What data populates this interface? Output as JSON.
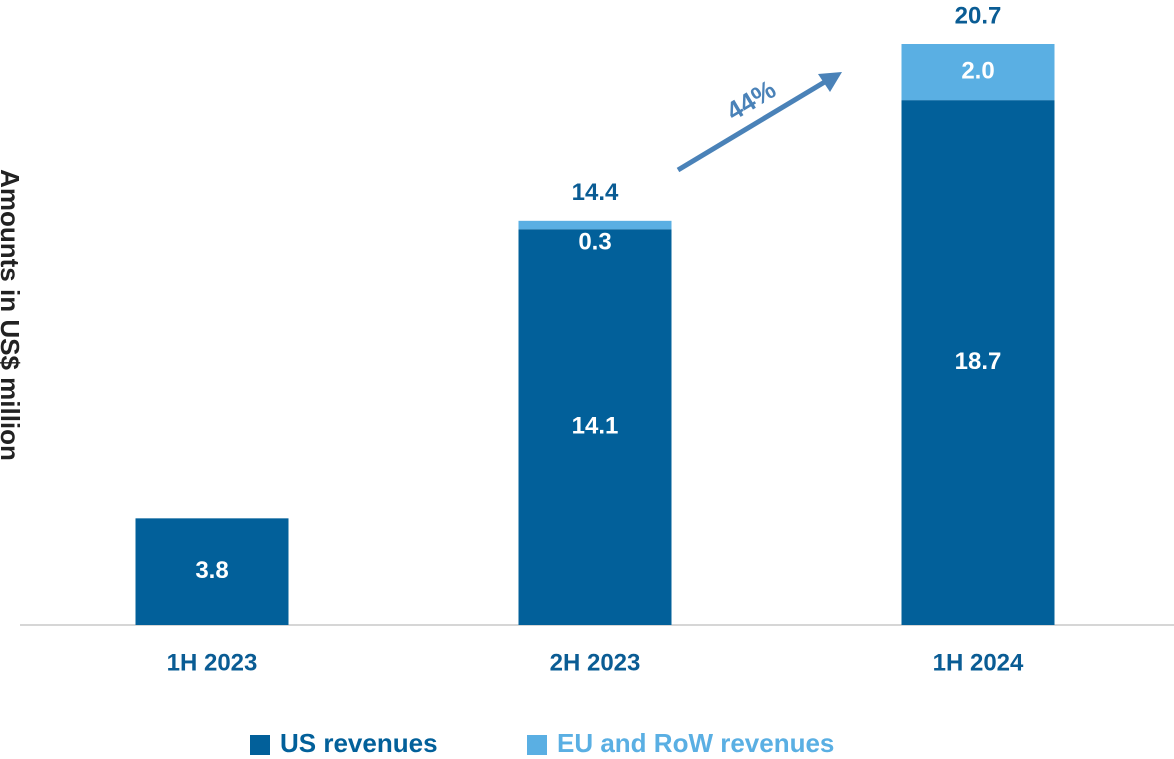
{
  "chart_data": {
    "type": "stacked_bar",
    "y_label": "Amounts in US$ million",
    "categories": [
      "1H 2023",
      "2H 2023",
      "1H 2024"
    ],
    "series": [
      {
        "name": "US revenues",
        "color": "#02609a",
        "values": [
          3.8,
          14.1,
          18.7
        ]
      },
      {
        "name": "EU and RoW revenues",
        "color": "#5aafe3",
        "values": [
          null,
          0.3,
          2.0
        ],
        "value_labels": [
          null,
          "0.3",
          "2.0"
        ]
      }
    ],
    "totals": [
      null,
      14.4,
      20.7
    ],
    "annotation": "44%",
    "ylim": [
      0,
      20.7
    ],
    "legend": "bottom"
  }
}
